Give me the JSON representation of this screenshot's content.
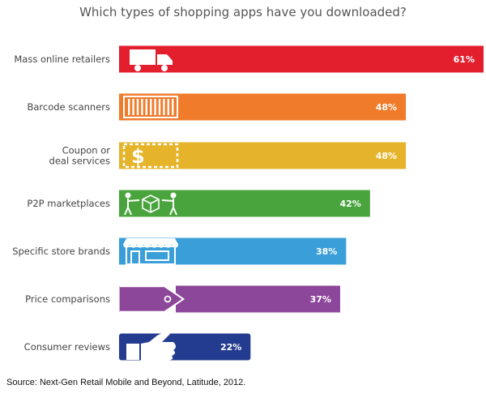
{
  "chart_data": {
    "type": "bar",
    "orientation": "horizontal",
    "title": "Which types of shopping apps have you downloaded?",
    "categories": [
      {
        "label_lines": [
          "Mass online retailers"
        ],
        "icon": "truck-icon"
      },
      {
        "label_lines": [
          "Barcode scanners"
        ],
        "icon": "barcode-icon"
      },
      {
        "label_lines": [
          "Coupon or",
          "deal services"
        ],
        "icon": "coupon-icon"
      },
      {
        "label_lines": [
          "P2P marketplaces"
        ],
        "icon": "people-exchange-icon"
      },
      {
        "label_lines": [
          "Specific store brands"
        ],
        "icon": "storefront-icon"
      },
      {
        "label_lines": [
          "Price comparisons"
        ],
        "icon": "price-tag-icon"
      },
      {
        "label_lines": [
          "Consumer reviews"
        ],
        "icon": "thumbs-up-icon"
      }
    ],
    "values": [
      61,
      48,
      48,
      42,
      38,
      37,
      22
    ],
    "value_labels": [
      "61%",
      "48%",
      "48%",
      "42%",
      "38%",
      "37%",
      "22%"
    ],
    "value_unit": "%",
    "xlim": [
      0,
      61
    ],
    "colors": [
      "#e31e2d",
      "#f07b2a",
      "#e6b42a",
      "#4aa43d",
      "#3a9fd8",
      "#8d479a",
      "#243c8f"
    ],
    "xlabel": "",
    "ylabel": "",
    "grid": false,
    "legend": "none"
  },
  "footer": {
    "source": "Source: Next-Gen Retail Mobile and Beyond, Latitude, 2012."
  }
}
